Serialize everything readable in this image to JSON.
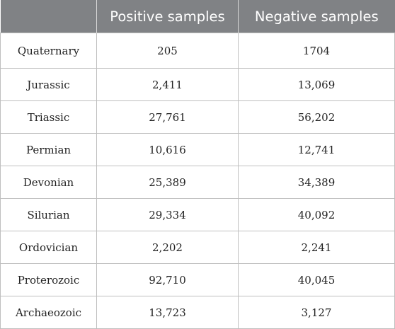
{
  "table": {
    "headers": [
      "",
      "Positive samples",
      "Negative samples"
    ],
    "rows": [
      [
        "Quaternary",
        "205",
        "1704"
      ],
      [
        "Jurassic",
        "2,411",
        "13,069"
      ],
      [
        "Triassic",
        "27,761",
        "56,202"
      ],
      [
        "Permian",
        "10,616",
        "12,741"
      ],
      [
        "Devonian",
        "25,389",
        "34,389"
      ],
      [
        "Silurian",
        "29,334",
        "40,092"
      ],
      [
        "Ordovician",
        "2,202",
        "2,241"
      ],
      [
        "Proterozoic",
        "92,710",
        "40,045"
      ],
      [
        "Archaeozoic",
        "13,723",
        "3,127"
      ]
    ]
  }
}
